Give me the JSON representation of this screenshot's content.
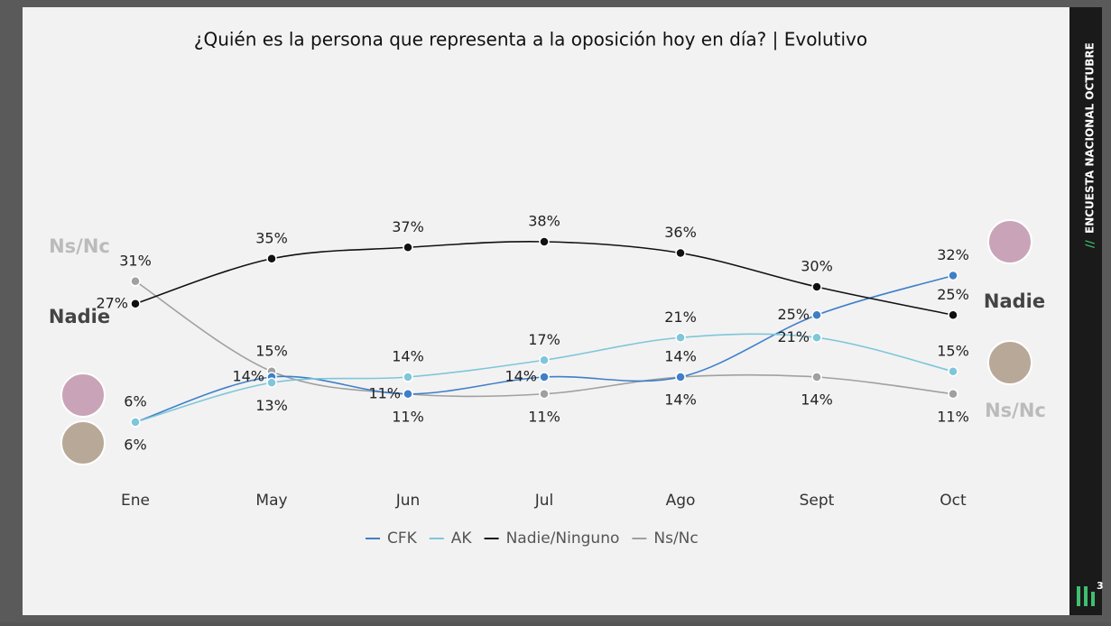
{
  "chart_data": {
    "type": "line",
    "title": "¿Quién es la persona que representa a la oposición hoy en día? | Evolutivo",
    "categories": [
      "Ene",
      "May",
      "Jun",
      "Jul",
      "Ago",
      "Sept",
      "Oct"
    ],
    "series": [
      {
        "name": "CFK",
        "color": "#3f7fc8",
        "values": [
          6,
          14,
          11,
          14,
          14,
          25,
          32
        ],
        "value_labels": [
          "6%",
          "14%",
          "11%",
          "14%",
          "14%",
          "25%",
          "32%"
        ]
      },
      {
        "name": "AK",
        "color": "#7ec6da",
        "values": [
          6,
          13,
          14,
          17,
          21,
          21,
          15
        ],
        "value_labels": [
          "6%",
          "13%",
          "14%",
          "17%",
          "21%",
          "21%",
          "15%"
        ]
      },
      {
        "name": "Nadie/Ninguno",
        "color": "#111111",
        "values": [
          27,
          35,
          37,
          38,
          36,
          30,
          25
        ],
        "value_labels": [
          "27%",
          "35%",
          "37%",
          "38%",
          "36%",
          "30%",
          "25%"
        ]
      },
      {
        "name": "Ns/Nc",
        "color": "#a0a0a0",
        "values": [
          31,
          15,
          11,
          11,
          14,
          14,
          11
        ],
        "value_labels": [
          "31%",
          "15%",
          "11%",
          "11%",
          "14%",
          "14%",
          "11%"
        ]
      }
    ],
    "side_labels": {
      "left": [
        "Ns/Nc",
        "Nadie"
      ],
      "right": [
        "Nadie",
        "Ns/Nc"
      ]
    }
  },
  "sidebar": {
    "mark": "//",
    "text": "ENCUESTA NACIONAL OCTUBRE",
    "logo": "3"
  }
}
